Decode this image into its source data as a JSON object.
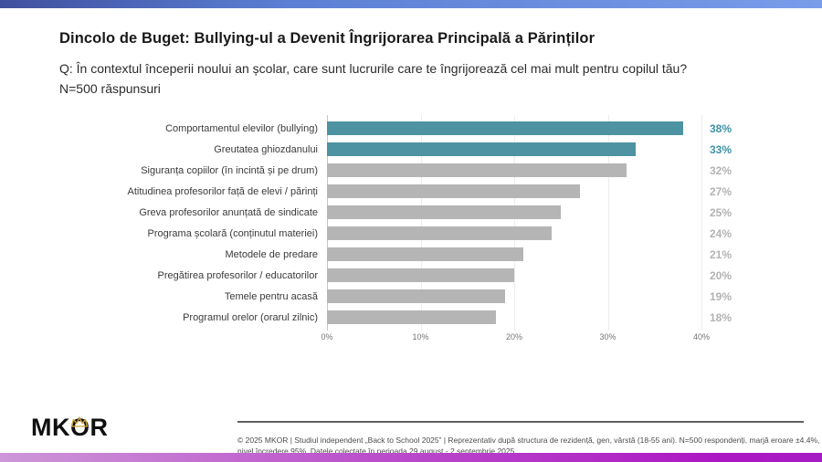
{
  "page": {
    "title": "Dincolo de Buget: Bullying-ul a Devenit Îngrijorarea Principală a Părinților",
    "question": "Q: În contextul începerii noului an școlar, care sunt lucrurile care te îngrijorează cel mai mult pentru copilul tău?",
    "sample_size": "N=500 răspunsuri"
  },
  "chart_data": {
    "type": "bar",
    "orientation": "horizontal",
    "categories": [
      "Comportamentul elevilor (bullying)",
      "Greutatea ghiozdanului",
      "Siguranța copiilor (în incintă și pe drum)",
      "Atitudinea profesorilor față de elevi / părinți",
      "Greva profesorilor anunțată de sindicate",
      "Programa școlară (conținutul materiei)",
      "Metodele de predare",
      "Pregătirea profesorilor / educatorilor",
      "Temele pentru acasă",
      "Programul orelor (orarul zilnic)"
    ],
    "values": [
      38,
      33,
      32,
      27,
      25,
      24,
      21,
      20,
      19,
      18
    ],
    "value_suffix": "%",
    "highlight_count": 2,
    "xlim": [
      0,
      40
    ],
    "x_ticks": [
      "0%",
      "10%",
      "20%",
      "30%",
      "40%"
    ],
    "grid": true,
    "legend": "none",
    "colors": {
      "highlight_bar": "#4e93a2",
      "highlight_value": "#3e92a6",
      "default_bar": "#b5b5b5",
      "default_value": "#b3b3b3"
    }
  },
  "footer": {
    "logo_text": "MKOR",
    "crown_color": "#cfa43c",
    "citation": "© 2025 MKOR | Studiul independent „Back to School 2025” | Reprezentativ după structura de rezidență, gen, vârstă (18-55 ani). N=500 respondenți, marjă eroare ±4.4%, nivel încredere 95%. Datele colectate în perioada 29 august - 2 septembrie 2025."
  }
}
